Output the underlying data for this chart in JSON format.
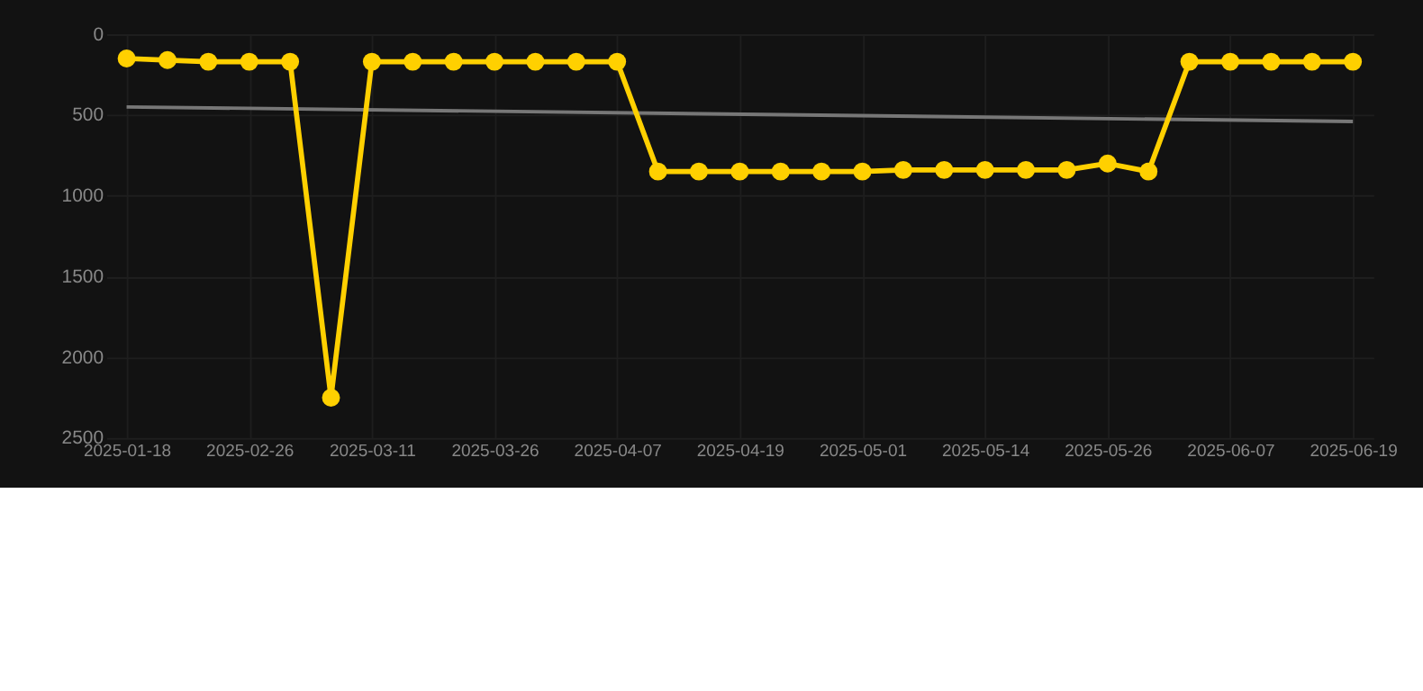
{
  "chart_data": {
    "type": "line",
    "categories": [
      "2025-01-18",
      null,
      null,
      "2025-02-26",
      null,
      null,
      "2025-03-11",
      null,
      null,
      "2025-03-26",
      null,
      null,
      "2025-04-07",
      null,
      null,
      "2025-04-19",
      null,
      null,
      "2025-05-01",
      null,
      null,
      "2025-05-14",
      null,
      null,
      "2025-05-26",
      null,
      null,
      "2025-06-07",
      null,
      null,
      "2025-06-19"
    ],
    "series": [
      {
        "color": "#ffd000",
        "values": [
          150,
          160,
          170,
          170,
          170,
          2250,
          170,
          170,
          170,
          170,
          170,
          170,
          170,
          850,
          850,
          850,
          850,
          850,
          850,
          840,
          840,
          840,
          840,
          840,
          800,
          850,
          170,
          170,
          170,
          170,
          170
        ]
      },
      {
        "type": "line",
        "color": "#777777",
        "marker": "none",
        "values": [
          450,
          null,
          null,
          null,
          null,
          null,
          null,
          null,
          null,
          null,
          null,
          null,
          null,
          null,
          null,
          null,
          null,
          null,
          null,
          null,
          null,
          null,
          null,
          null,
          null,
          null,
          null,
          null,
          null,
          null,
          540
        ]
      }
    ],
    "ylim": [
      2500,
      0
    ],
    "yticks": [
      0,
      500,
      1000,
      1500,
      2000,
      2500
    ],
    "grid": true,
    "marker": "circle"
  }
}
